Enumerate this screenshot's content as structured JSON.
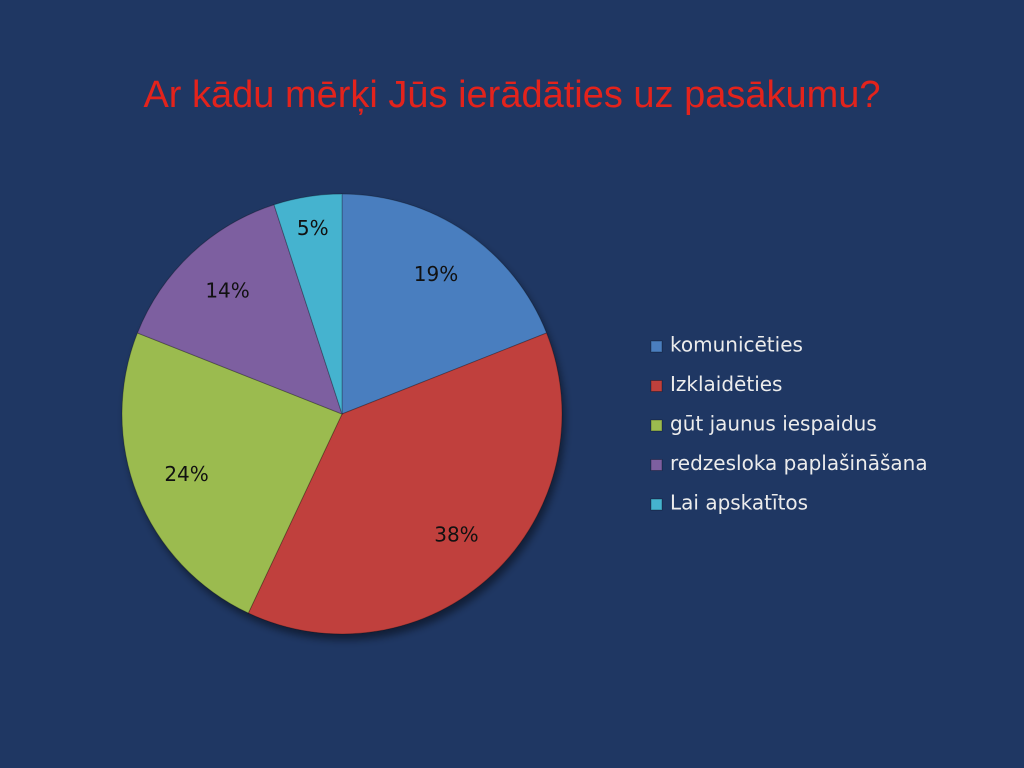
{
  "chart_data": {
    "type": "pie",
    "title": "Ar kādu mērķi Jūs ierādāties uz pasākumu?",
    "categories": [
      "komunicēties",
      "Izklaidēties",
      "gūt jaunus iespaidus",
      "redzesloka paplašināšana",
      "Lai apskatītos"
    ],
    "values": [
      19,
      38,
      24,
      14,
      5
    ],
    "value_labels": [
      "19%",
      "38%",
      "24%",
      "14%",
      "5%"
    ],
    "colors": [
      "#4a7ebf",
      "#c0403c",
      "#9bbb4f",
      "#7d5fa0",
      "#45b3cf"
    ],
    "legend": "right"
  }
}
